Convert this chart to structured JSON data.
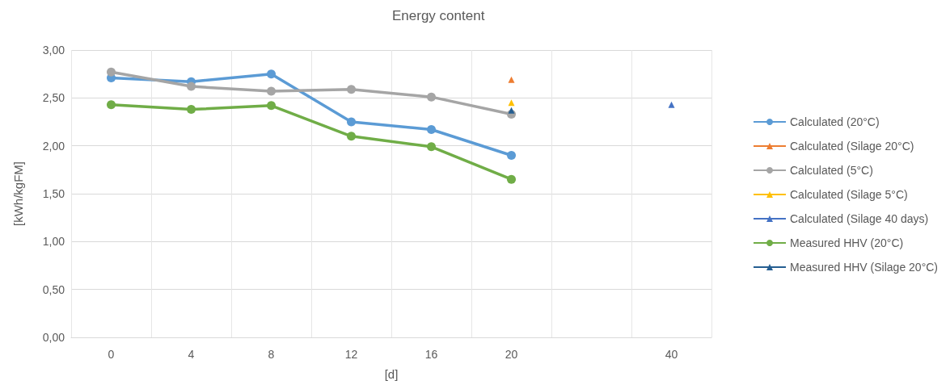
{
  "chart_data": {
    "type": "line",
    "title": "Energy content",
    "xlabel": "[d]",
    "ylabel": "[kWh/kgFM]",
    "categories": [
      "0",
      "4",
      "8",
      "12",
      "16",
      "20",
      null,
      "40"
    ],
    "ylim": [
      0,
      3
    ],
    "yticks": [
      {
        "value": 0,
        "label": "0,00"
      },
      {
        "value": 0.5,
        "label": "0,50"
      },
      {
        "value": 1,
        "label": "1,00"
      },
      {
        "value": 1.5,
        "label": "1,50"
      },
      {
        "value": 2,
        "label": "2,00"
      },
      {
        "value": 2.5,
        "label": "2,50"
      },
      {
        "value": 3,
        "label": "3,00"
      }
    ],
    "grid": true,
    "legend": "right",
    "series": [
      {
        "name": "Calculated (20°C)",
        "color": "#5b9bd5",
        "marker": "circle",
        "values": [
          2.71,
          2.67,
          2.75,
          2.25,
          2.17,
          1.9,
          null,
          null
        ]
      },
      {
        "name": "Calculated (Silage 20°C)",
        "color": "#ed7d31",
        "marker": "triangle",
        "values": [
          null,
          null,
          null,
          null,
          null,
          2.69,
          null,
          null
        ]
      },
      {
        "name": "Calculated (5°C)",
        "color": "#a5a5a5",
        "marker": "circle",
        "values": [
          2.77,
          2.62,
          2.57,
          2.59,
          2.51,
          2.33,
          null,
          null
        ]
      },
      {
        "name": "Calculated (Silage 5°C)",
        "color": "#ffc000",
        "marker": "triangle",
        "values": [
          null,
          null,
          null,
          null,
          null,
          2.45,
          null,
          null
        ]
      },
      {
        "name": "Calculated (Silage 40 days)",
        "color": "#4472c4",
        "marker": "triangle",
        "values": [
          null,
          null,
          null,
          null,
          null,
          null,
          null,
          2.43
        ]
      },
      {
        "name": "Measured HHV (20°C)",
        "color": "#70ad47",
        "marker": "circle",
        "values": [
          2.43,
          2.38,
          2.42,
          2.1,
          1.99,
          1.65,
          null,
          null
        ]
      },
      {
        "name": "Measured HHV (Silage 20°C)",
        "color": "#255e91",
        "marker": "triangle",
        "values": [
          null,
          null,
          null,
          null,
          null,
          2.37,
          null,
          null
        ]
      }
    ]
  }
}
